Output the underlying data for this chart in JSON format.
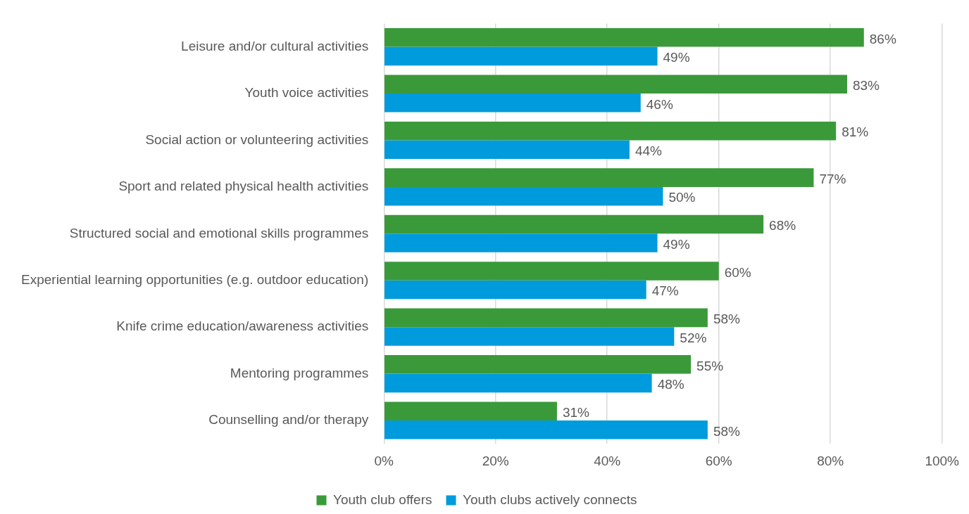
{
  "chart_data": {
    "type": "bar",
    "orientation": "horizontal",
    "categories": [
      "Leisure and/or cultural activities",
      "Youth voice activities",
      "Social action or volunteering activities",
      "Sport and related physical health activities",
      "Structured social and emotional skills programmes",
      "Experiential learning opportunities (e.g. outdoor education)",
      "Knife crime education/awareness activities",
      "Mentoring programmes",
      "Counselling and/or therapy"
    ],
    "series": [
      {
        "name": "Youth club offers",
        "color": "#3a9a3a",
        "values": [
          86,
          83,
          81,
          77,
          68,
          60,
          58,
          55,
          31
        ],
        "value_labels": [
          "86%",
          "83%",
          "81%",
          "77%",
          "68%",
          "60%",
          "58%",
          "55%",
          "31%"
        ]
      },
      {
        "name": "Youth clubs actively connects",
        "color": "#009bdc",
        "values": [
          49,
          46,
          44,
          50,
          49,
          47,
          52,
          48,
          58
        ],
        "value_labels": [
          "49%",
          "46%",
          "44%",
          "50%",
          "49%",
          "47%",
          "52%",
          "48%",
          "58%"
        ]
      }
    ],
    "xlim": [
      0,
      100
    ],
    "xticks": [
      {
        "value": 0,
        "label": "0%"
      },
      {
        "value": 20,
        "label": "20%"
      },
      {
        "value": 40,
        "label": "40%"
      },
      {
        "value": 60,
        "label": "60%"
      },
      {
        "value": 80,
        "label": "80%"
      },
      {
        "value": 100,
        "label": "100%"
      }
    ],
    "grid": "x",
    "legend": "bottom"
  }
}
